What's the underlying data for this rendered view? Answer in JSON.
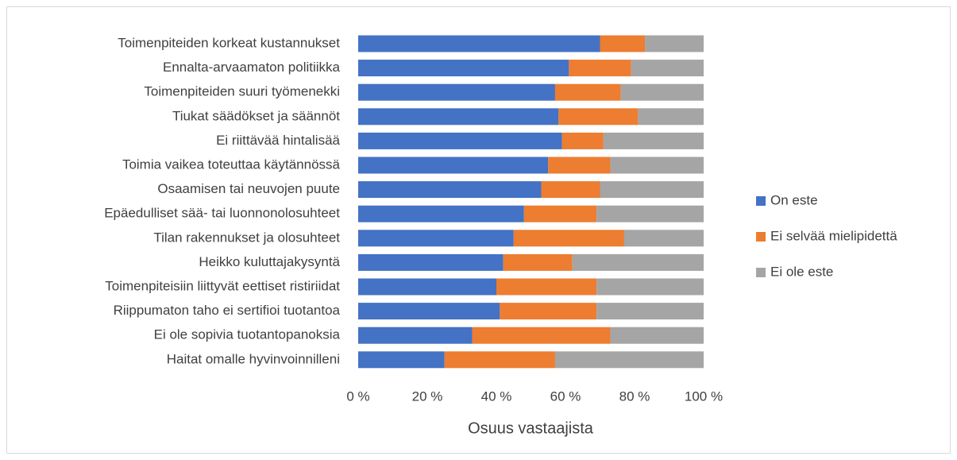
{
  "chart_data": {
    "type": "stacked_bar_horizontal",
    "x_label": "Osuus vastaajista",
    "categories": [
      "Toimenpiteiden korkeat kustannukset",
      "Ennalta-arvaamaton politiikka",
      "Toimenpiteiden suuri työmenekki",
      "Tiukat säädökset ja säännöt",
      "Ei riittävää hintalisää",
      "Toimia vaikea toteuttaa käytännössä",
      "Osaamisen tai neuvojen puute",
      "Epäedulliset sää- tai luonnonolosuhteet",
      "Tilan rakennukset ja olosuhteet",
      "Heikko kuluttajakysyntä",
      "Toimenpiteisiin liittyvät eettiset ristiriidat",
      "Riippumaton taho ei sertifioi tuotantoa",
      "Ei ole sopivia tuotantopanoksia",
      "Haitat omalle hyvinvoinnilleni"
    ],
    "series": [
      {
        "name": "On este",
        "color": "#4472c4",
        "values": [
          70,
          61,
          57,
          58,
          59,
          55,
          53,
          48,
          45,
          42,
          40,
          41,
          33,
          25
        ]
      },
      {
        "name": "Ei selvää mielipidettä",
        "color": "#ed7d31",
        "values": [
          13,
          18,
          19,
          23,
          12,
          18,
          17,
          21,
          32,
          20,
          29,
          28,
          40,
          32
        ]
      },
      {
        "name": "Ei ole este",
        "color": "#a5a5a5",
        "values": [
          17,
          21,
          24,
          19,
          29,
          27,
          30,
          31,
          23,
          38,
          31,
          31,
          27,
          43
        ]
      }
    ],
    "xlim": [
      0,
      100
    ],
    "xticks": [
      {
        "value": 0,
        "label": "0 %"
      },
      {
        "value": 20,
        "label": "20 %"
      },
      {
        "value": 40,
        "label": "40 %"
      },
      {
        "value": 60,
        "label": "60 %"
      },
      {
        "value": 80,
        "label": "80 %"
      },
      {
        "value": 100,
        "label": "100 %"
      }
    ],
    "legend": "right"
  }
}
